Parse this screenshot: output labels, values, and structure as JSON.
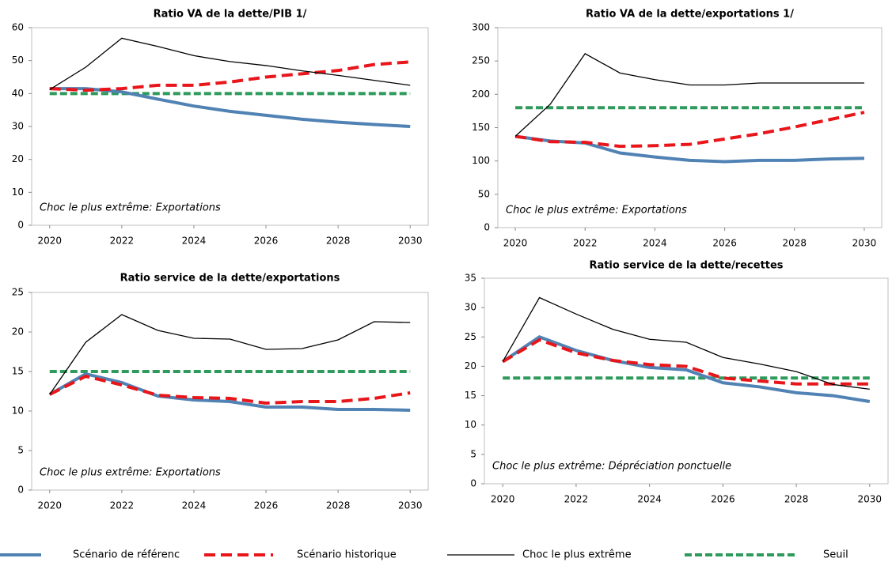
{
  "chart_data": [
    {
      "type": "line",
      "title": "Ratio VA de la dette/PIB  1/",
      "annotation": "Choc le plus extrême: Exportations",
      "x": [
        2020,
        2021,
        2022,
        2023,
        2024,
        2025,
        2026,
        2027,
        2028,
        2029,
        2030
      ],
      "xlim": [
        2019.5,
        2030.5
      ],
      "xticks": [
        2020,
        2022,
        2024,
        2026,
        2028,
        2030
      ],
      "ylim": [
        0,
        60
      ],
      "yticks": [
        0,
        10,
        20,
        30,
        40,
        50,
        60
      ],
      "series": [
        {
          "name": "Scénario de référenc",
          "color": "#5082b4",
          "dash": "solid",
          "width": 4,
          "values": [
            41.5,
            41.5,
            40.5,
            38.3,
            36.2,
            34.6,
            33.4,
            32.2,
            31.3,
            30.6,
            30.0
          ]
        },
        {
          "name": "Scénario historique",
          "color": "#e8161b",
          "dash": "dashed",
          "width": 4,
          "values": [
            41.5,
            41,
            41.5,
            42.5,
            42.5,
            43.5,
            45,
            46,
            47,
            48.8,
            49.6
          ]
        },
        {
          "name": "Choc le plus extrême",
          "color": "#000000",
          "dash": "solid",
          "width": 1.3,
          "values": [
            41.2,
            48,
            56.8,
            54.3,
            51.5,
            49.7,
            48.5,
            46.9,
            45.5,
            44,
            42.5
          ]
        },
        {
          "name": "Seuil",
          "color": "#2e9a5c",
          "dash": "dashed",
          "width": 4,
          "values": [
            40,
            40,
            40,
            40,
            40,
            40,
            40,
            40,
            40,
            40,
            40
          ]
        }
      ]
    },
    {
      "type": "line",
      "title": "Ratio VA de la dette/exportations  1/",
      "annotation": "Choc le plus extrême: Exportations",
      "x": [
        2020,
        2021,
        2022,
        2023,
        2024,
        2025,
        2026,
        2027,
        2028,
        2029,
        2030
      ],
      "xlim": [
        2019.5,
        2030.5
      ],
      "xticks": [
        2020,
        2022,
        2024,
        2026,
        2028,
        2030
      ],
      "ylim": [
        0,
        300
      ],
      "yticks": [
        0,
        50,
        100,
        150,
        200,
        250,
        300
      ],
      "series": [
        {
          "name": "Scénario de référenc",
          "color": "#5082b4",
          "dash": "solid",
          "width": 4,
          "values": [
            137,
            130,
            127,
            112,
            106,
            101,
            99,
            101,
            101,
            103,
            104
          ]
        },
        {
          "name": "Scénario historique",
          "color": "#e8161b",
          "dash": "dashed",
          "width": 4,
          "values": [
            137,
            129,
            128,
            122,
            123,
            125,
            133,
            141,
            151,
            162,
            173
          ]
        },
        {
          "name": "Choc le plus extrême",
          "color": "#000000",
          "dash": "solid",
          "width": 1.3,
          "values": [
            137,
            185,
            261,
            232,
            222,
            214,
            214,
            217,
            217,
            217,
            217
          ]
        },
        {
          "name": "Seuil",
          "color": "#2e9a5c",
          "dash": "dashed",
          "width": 4,
          "values": [
            180,
            180,
            180,
            180,
            180,
            180,
            180,
            180,
            180,
            180,
            180
          ]
        }
      ]
    },
    {
      "type": "line",
      "title": "Ratio service de la dette/exportations",
      "annotation": "Choc le plus extrême: Exportations",
      "x": [
        2020,
        2021,
        2022,
        2023,
        2024,
        2025,
        2026,
        2027,
        2028,
        2029,
        2030
      ],
      "xlim": [
        2019.5,
        2030.5
      ],
      "xticks": [
        2020,
        2022,
        2024,
        2026,
        2028,
        2030
      ],
      "ylim": [
        0,
        25
      ],
      "yticks": [
        0,
        5,
        10,
        15,
        20,
        25
      ],
      "series": [
        {
          "name": "Scénario de référenc",
          "color": "#5082b4",
          "dash": "solid",
          "width": 4,
          "values": [
            12.1,
            14.7,
            13.6,
            11.9,
            11.4,
            11.2,
            10.5,
            10.5,
            10.2,
            10.2,
            10.1
          ]
        },
        {
          "name": "Scénario historique",
          "color": "#e8161b",
          "dash": "dashed",
          "width": 4,
          "values": [
            12.1,
            14.4,
            13.3,
            12,
            11.7,
            11.6,
            11.0,
            11.2,
            11.2,
            11.6,
            12.3
          ]
        },
        {
          "name": "Choc le plus extrême",
          "color": "#000000",
          "dash": "solid",
          "width": 1.3,
          "values": [
            12.1,
            18.7,
            22.2,
            20.2,
            19.2,
            19.1,
            17.8,
            17.9,
            19,
            21.3,
            21.2
          ]
        },
        {
          "name": "Seuil",
          "color": "#2e9a5c",
          "dash": "dashed",
          "width": 4,
          "values": [
            15,
            15,
            15,
            15,
            15,
            15,
            15,
            15,
            15,
            15,
            15
          ]
        }
      ]
    },
    {
      "type": "line",
      "title": "Ratio service de la dette/recettes",
      "annotation": "Choc le plus extrême: Dépréciation  ponctuelle",
      "x": [
        2020,
        2021,
        2022,
        2023,
        2024,
        2025,
        2026,
        2027,
        2028,
        2029,
        2030
      ],
      "xlim": [
        2019.5,
        2030.5
      ],
      "xticks": [
        2020,
        2022,
        2024,
        2026,
        2028,
        2030
      ],
      "ylim": [
        0,
        35
      ],
      "yticks": [
        0,
        5,
        10,
        15,
        20,
        25,
        30,
        35
      ],
      "series": [
        {
          "name": "Scénario de référenc",
          "color": "#5082b4",
          "dash": "solid",
          "width": 4,
          "values": [
            20.8,
            25,
            22.7,
            21,
            19.8,
            19.4,
            17.2,
            16.5,
            15.5,
            15,
            14
          ]
        },
        {
          "name": "Scénario historique",
          "color": "#e8161b",
          "dash": "dashed",
          "width": 4,
          "values": [
            20.8,
            24.5,
            22.3,
            21,
            20.3,
            20,
            18,
            17.5,
            17,
            17,
            17
          ]
        },
        {
          "name": "Choc le plus extrême",
          "color": "#000000",
          "dash": "solid",
          "width": 1.3,
          "values": [
            20.8,
            31.7,
            28.9,
            26.3,
            24.6,
            24.1,
            21.5,
            20.4,
            19.1,
            16.9,
            16.1
          ]
        },
        {
          "name": "Seuil",
          "color": "#2e9a5c",
          "dash": "dashed",
          "width": 4,
          "values": [
            18,
            18,
            18,
            18,
            18,
            18,
            18,
            18,
            18,
            18,
            18
          ]
        }
      ]
    }
  ]
}
